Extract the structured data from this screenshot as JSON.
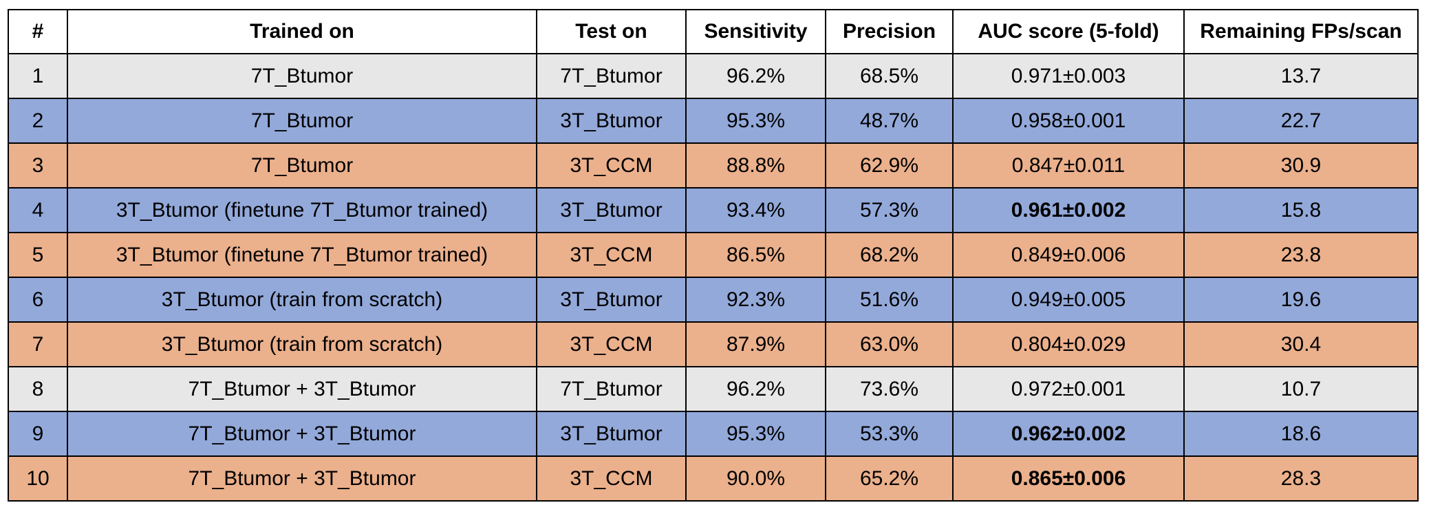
{
  "table": {
    "header": [
      "#",
      "Trained on",
      "Test on",
      "Sensitivity",
      "Precision",
      "AUC score (5-fold)",
      "Remaining FPs/scan"
    ],
    "rows": [
      [
        "1",
        "7T_Btumor",
        "7T_Btumor",
        "96.2%",
        "68.5%",
        "0.971±0.003",
        "13.7"
      ],
      [
        "2",
        "7T_Btumor",
        "3T_Btumor",
        "95.3%",
        "48.7%",
        "0.958±0.001",
        "22.7"
      ],
      [
        "3",
        "7T_Btumor",
        "3T_CCM",
        "88.8%",
        "62.9%",
        "0.847±0.011",
        "30.9"
      ],
      [
        "4",
        "3T_Btumor (finetune 7T_Btumor trained)",
        "3T_Btumor",
        "93.4%",
        "57.3%",
        "0.961±0.002",
        "15.8"
      ],
      [
        "5",
        "3T_Btumor (finetune 7T_Btumor trained)",
        "3T_CCM",
        "86.5%",
        "68.2%",
        "0.849±0.006",
        "23.8"
      ],
      [
        "6",
        "3T_Btumor (train from scratch)",
        "3T_Btumor",
        "92.3%",
        "51.6%",
        "0.949±0.005",
        "19.6"
      ],
      [
        "7",
        "3T_Btumor (train from scratch)",
        "3T_CCM",
        "87.9%",
        "63.0%",
        "0.804±0.029",
        "30.4"
      ],
      [
        "8",
        "7T_Btumor + 3T_Btumor",
        "7T_Btumor",
        "96.2%",
        "73.6%",
        "0.972±0.001",
        "10.7"
      ],
      [
        "9",
        "7T_Btumor + 3T_Btumor",
        "3T_Btumor",
        "95.3%",
        "53.3%",
        "0.962±0.002",
        "18.6"
      ],
      [
        "10",
        "7T_Btumor + 3T_Btumor",
        "3T_CCM",
        "90.0%",
        "65.2%",
        "0.865±0.006",
        "28.3"
      ]
    ],
    "row_colors": [
      "#e7e7e7",
      "#93a9da",
      "#ebb08c",
      "#93a9da",
      "#ebb08c",
      "#93a9da",
      "#ebb08c",
      "#e7e7e7",
      "#93a9da",
      "#ebb08c"
    ],
    "bold_cells": [
      [
        3,
        5
      ],
      [
        8,
        5
      ],
      [
        9,
        5
      ]
    ]
  }
}
